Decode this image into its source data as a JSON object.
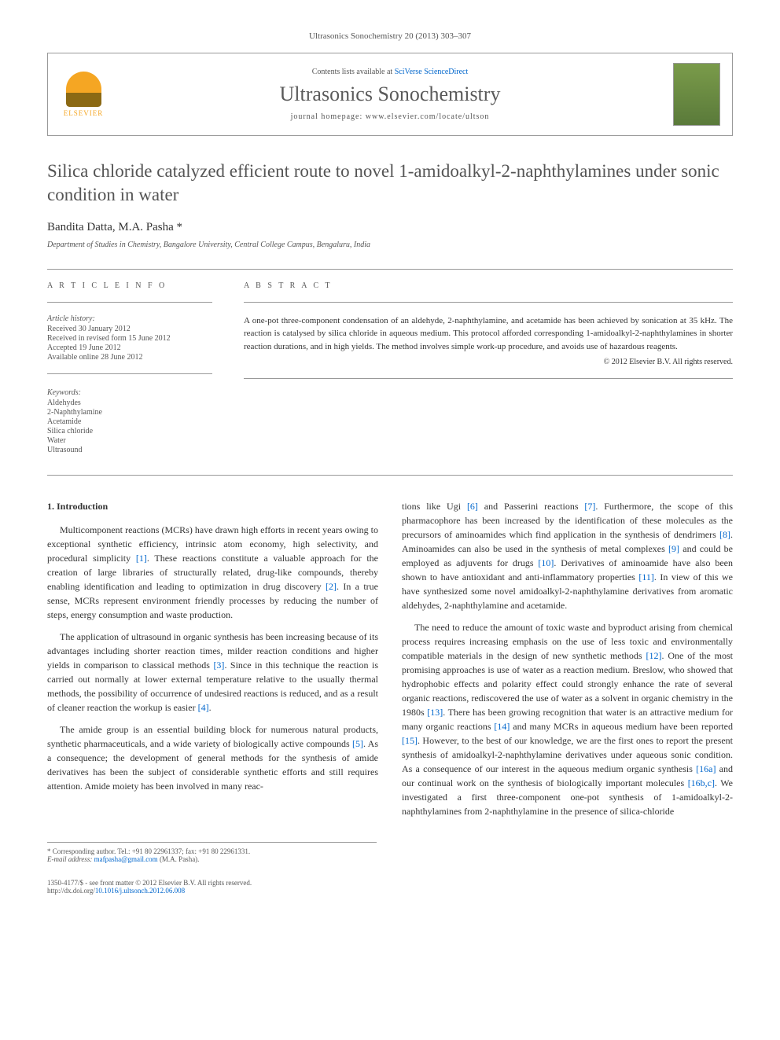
{
  "journal_ref": "Ultrasonics Sonochemistry 20 (2013) 303–307",
  "header": {
    "publisher": "ELSEVIER",
    "contents_prefix": "Contents lists available at ",
    "contents_link": "SciVerse ScienceDirect",
    "journal_name": "Ultrasonics Sonochemistry",
    "homepage_prefix": "journal homepage: ",
    "homepage_url": "www.elsevier.com/locate/ultson"
  },
  "title": "Silica chloride catalyzed efficient route to novel 1-amidoalkyl-2-naphthylamines under sonic condition in water",
  "authors": "Bandita Datta, M.A. Pasha *",
  "affiliation": "Department of Studies in Chemistry, Bangalore University, Central College Campus, Bengaluru, India",
  "article_info": {
    "header": "A R T I C L E   I N F O",
    "history_label": "Article history:",
    "received": "Received 30 January 2012",
    "revised": "Received in revised form 15 June 2012",
    "accepted": "Accepted 19 June 2012",
    "online": "Available online 28 June 2012",
    "keywords_label": "Keywords:",
    "keywords": [
      "Aldehydes",
      "2-Naphthylamine",
      "Acetamide",
      "Silica chloride",
      "Water",
      "Ultrasound"
    ]
  },
  "abstract": {
    "header": "A B S T R A C T",
    "text": "A one-pot three-component condensation of an aldehyde, 2-naphthylamine, and acetamide has been achieved by sonication at 35 kHz. The reaction is catalysed by silica chloride in aqueous medium. This protocol afforded corresponding 1-amidoalkyl-2-naphthylamines in shorter reaction durations, and in high yields. The method involves simple work-up procedure, and avoids use of hazardous reagents.",
    "copyright": "© 2012 Elsevier B.V. All rights reserved."
  },
  "section1_heading": "1. Introduction",
  "col1": {
    "p1a": "Multicomponent reactions (MCRs) have drawn high efforts in recent years owing to exceptional synthetic efficiency, intrinsic atom economy, high selectivity, and procedural simplicity ",
    "p1_ref1": "[1]",
    "p1b": ". These reactions constitute a valuable approach for the creation of large libraries of structurally related, drug-like compounds, thereby enabling identification and leading to optimization in drug discovery ",
    "p1_ref2": "[2]",
    "p1c": ". In a true sense, MCRs represent environment friendly processes by reducing the number of steps, energy consumption and waste production.",
    "p2a": "The application of ultrasound in organic synthesis has been increasing because of its advantages including shorter reaction times, milder reaction conditions and higher yields in comparison to classical methods ",
    "p2_ref3": "[3]",
    "p2b": ". Since in this technique the reaction is carried out normally at lower external temperature relative to the usually thermal methods, the possibility of occurrence of undesired reactions is reduced, and as a result of cleaner reaction the workup is easier ",
    "p2_ref4": "[4]",
    "p2c": ".",
    "p3a": "The amide group is an essential building block for numerous natural products, synthetic pharmaceuticals, and a wide variety of biologically active compounds ",
    "p3_ref5": "[5]",
    "p3b": ". As a consequence; the development of general methods for the synthesis of amide derivatives has been the subject of considerable synthetic efforts and still requires attention. Amide moiety has been involved in many reac-"
  },
  "col2": {
    "p1a": "tions like Ugi ",
    "p1_ref6": "[6]",
    "p1b": " and Passerini reactions ",
    "p1_ref7": "[7]",
    "p1c": ". Furthermore, the scope of this pharmacophore has been increased by the identification of these molecules as the precursors of aminoamides which find application in the synthesis of dendrimers ",
    "p1_ref8": "[8]",
    "p1d": ". Aminoamides can also be used in the synthesis of metal complexes ",
    "p1_ref9": "[9]",
    "p1e": " and could be employed as adjuvents for drugs ",
    "p1_ref10": "[10]",
    "p1f": ". Derivatives of aminoamide have also been shown to have antioxidant and anti-inflammatory properties ",
    "p1_ref11": "[11]",
    "p1g": ". In view of this we have synthesized some novel amidoalkyl-2-naphthylamine derivatives from aromatic aldehydes, 2-naphthylamine and acetamide.",
    "p2a": "The need to reduce the amount of toxic waste and byproduct arising from chemical process requires increasing emphasis on the use of less toxic and environmentally compatible materials in the design of new synthetic methods ",
    "p2_ref12": "[12]",
    "p2b": ". One of the most promising approaches is use of water as a reaction medium. Breslow, who showed that hydrophobic effects and polarity effect could strongly enhance the rate of several organic reactions, rediscovered the use of water as a solvent in organic chemistry in the 1980s ",
    "p2_ref13": "[13]",
    "p2c": ". There has been growing recognition that water is an attractive medium for many organic reactions ",
    "p2_ref14": "[14]",
    "p2d": " and many MCRs in aqueous medium have been reported ",
    "p2_ref15": "[15]",
    "p2e": ". However, to the best of our knowledge, we are the first ones to report the present synthesis of amidoalkyl-2-naphthylamine derivatives under aqueous sonic condition. As a consequence of our interest in the aqueous medium organic synthesis ",
    "p2_ref16a": "[16a]",
    "p2f": " and our continual work on the synthesis of biologically important molecules ",
    "p2_ref16bc": "[16b,c]",
    "p2g": ". We investigated a first three-component one-pot synthesis of 1-amidoalkyl-2-naphthylamines from 2-naphthylamine in the presence of silica-chloride"
  },
  "corresponding": {
    "line1": "* Corresponding author. Tel.: +91 80 22961337; fax: +91 80 22961331.",
    "line2_label": "E-mail address: ",
    "line2_email": "mafpasha@gmail.com",
    "line2_suffix": " (M.A. Pasha)."
  },
  "bottom": {
    "line1": "1350-4177/$ - see front matter © 2012 Elsevier B.V. All rights reserved.",
    "line2_label": "http://dx.doi.org/",
    "line2_doi": "10.1016/j.ultsonch.2012.06.008"
  }
}
